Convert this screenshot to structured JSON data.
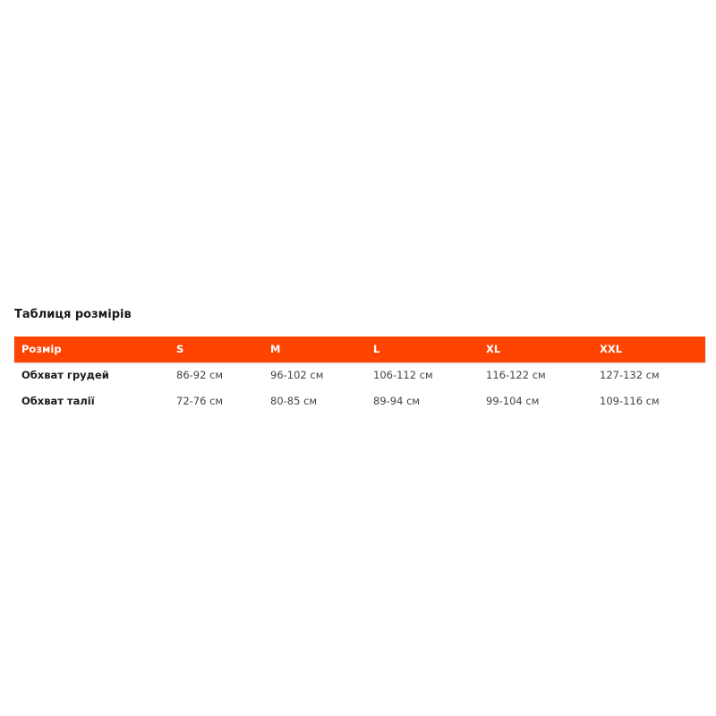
{
  "title": "Таблиця розмірів",
  "accent_color": "#ff4300",
  "table": {
    "headers": [
      "Розмір",
      "S",
      "M",
      "L",
      "XL",
      "XXL"
    ],
    "rows": [
      [
        "Обхват грудей",
        "86-92 см",
        "96-102 см",
        "106-112 см",
        "116-122 см",
        "127-132 см"
      ],
      [
        "Обхват талії",
        "72-76 см",
        "80-85 см",
        "89-94 см",
        "99-104 см",
        "109-116 см"
      ]
    ]
  }
}
